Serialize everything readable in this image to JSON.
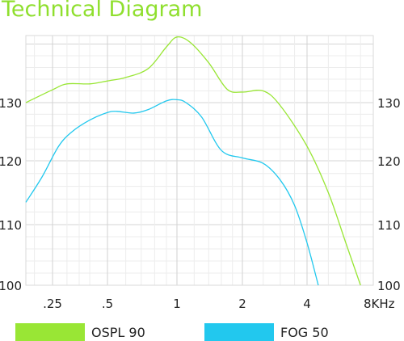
{
  "title": "Technical Diagram",
  "chart_data": {
    "type": "line",
    "title": "Technical Diagram",
    "x_scale": "log",
    "x_tick_labels": [
      ".25",
      ".5",
      "1",
      "2",
      "4",
      "8KHz"
    ],
    "x_tick_values": [
      0.25,
      0.5,
      1,
      2,
      4,
      8
    ],
    "y_ticks": [
      100,
      110,
      120,
      130
    ],
    "ylim": [
      100,
      142
    ],
    "grid": true,
    "legend_position": "bottom",
    "series": [
      {
        "name": "OSPL 90",
        "color": "#99e635",
        "x": [
          0.18,
          0.25,
          0.3,
          0.4,
          0.5,
          0.6,
          0.75,
          0.9,
          1.0,
          1.15,
          1.4,
          1.7,
          2.0,
          2.5,
          3.0,
          4.0,
          5.0,
          6.0,
          7.0
        ],
        "y": [
          130,
          132.2,
          133.2,
          133.2,
          133.7,
          134.3,
          135.8,
          139.5,
          141.2,
          140.3,
          136.8,
          132.3,
          131.8,
          132.0,
          129.5,
          122.5,
          115.0,
          107.0,
          100.0
        ]
      },
      {
        "name": "FOG 50",
        "color": "#22c8ee",
        "x": [
          0.18,
          0.22,
          0.27,
          0.32,
          0.4,
          0.5,
          0.55,
          0.65,
          0.75,
          0.9,
          1.0,
          1.1,
          1.3,
          1.6,
          2.0,
          2.5,
          3.0,
          3.5,
          4.0,
          4.5
        ],
        "y": [
          113.5,
          117.5,
          122.5,
          125.0,
          127.0,
          128.3,
          128.5,
          128.2,
          128.8,
          130.3,
          130.5,
          130.0,
          127.5,
          121.8,
          120.5,
          119.6,
          117.0,
          113.0,
          107.0,
          100.0
        ]
      }
    ]
  },
  "legend": [
    {
      "label": "OSPL 90",
      "color": "#99e635"
    },
    {
      "label": "FOG 50",
      "color": "#22c8ee"
    }
  ]
}
